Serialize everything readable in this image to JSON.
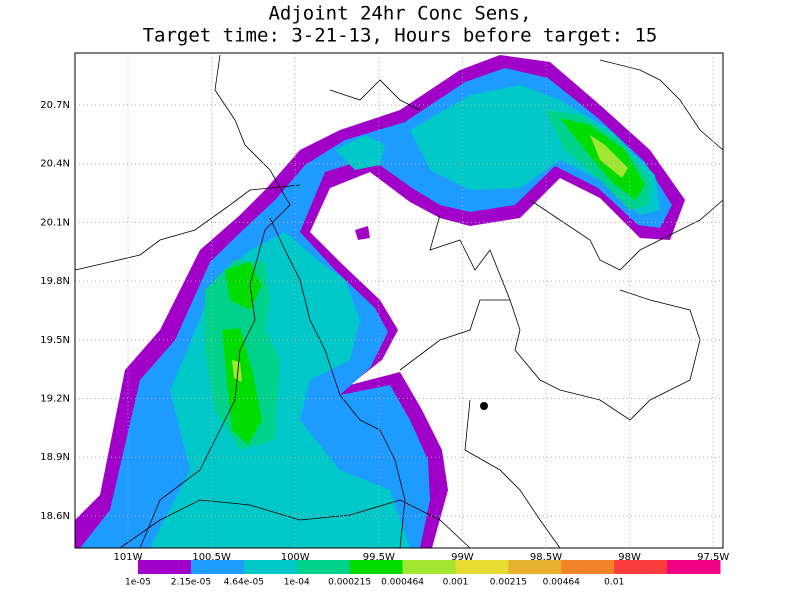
{
  "title": {
    "line1": "Adjoint 24hr Conc Sens,",
    "line2": "Target time: 3-21-13, Hours before target: 15"
  },
  "lat_labels": [
    "20.7N",
    "20.4N",
    "20.1N",
    "19.8N",
    "19.5N",
    "19.2N",
    "18.9N",
    "18.6N"
  ],
  "lon_labels": [
    "101W",
    "100.5W",
    "100W",
    "99.5W",
    "99W",
    "98.5W",
    "98W",
    "97.5W"
  ],
  "legend": {
    "labels": [
      "1e-05",
      "2.15e-05",
      "4.64e-05",
      "1e-04",
      "0.000215",
      "0.000464",
      "0.001",
      "0.00215",
      "0.00464",
      "0.01"
    ],
    "colors": [
      "#a000c8",
      "#1e9bff",
      "#00c8c8",
      "#00d28c",
      "#00dc00",
      "#a0e632",
      "#e6dc32",
      "#e6af2d",
      "#f08228",
      "#fa3c3c",
      "#f00082"
    ]
  }
}
